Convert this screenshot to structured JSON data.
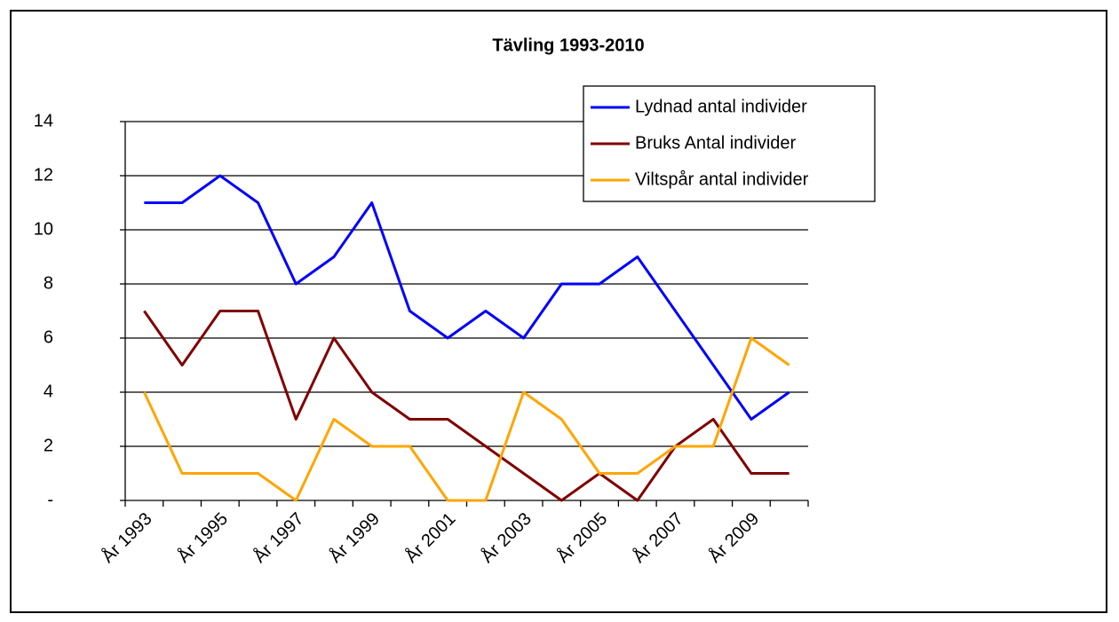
{
  "chart_data": {
    "type": "line",
    "title": "Tävling 1993-2010",
    "categories": [
      "År 1993",
      null,
      "År 1995",
      null,
      "År 1997",
      null,
      "År 1999",
      null,
      "År 2001",
      null,
      "År 2003",
      null,
      "År 2005",
      null,
      "År 2007",
      null,
      "År 2009",
      null
    ],
    "series": [
      {
        "name": "Lydnad antal individer",
        "color": "#0000ff",
        "values": [
          11,
          11,
          12,
          11,
          8,
          9,
          11,
          7,
          6,
          7,
          6,
          8,
          8,
          9,
          7,
          5,
          3,
          4
        ]
      },
      {
        "name": "Bruks Antal individer",
        "color": "#800000",
        "values": [
          7,
          5,
          7,
          7,
          3,
          6,
          4,
          3,
          3,
          2,
          1,
          0,
          1,
          0,
          2,
          3,
          1,
          1
        ]
      },
      {
        "name": "Viltspår antal individer",
        "color": "#ffa500",
        "values": [
          4,
          1,
          1,
          1,
          0,
          3,
          2,
          2,
          0,
          0,
          4,
          3,
          1,
          1,
          2,
          2,
          6,
          5
        ]
      }
    ],
    "ylim": [
      0,
      14
    ],
    "yticks": [
      {
        "value": 0,
        "label": "-"
      },
      2,
      4,
      6,
      8,
      10,
      12,
      14
    ],
    "grid": true,
    "legend": "upper right"
  }
}
